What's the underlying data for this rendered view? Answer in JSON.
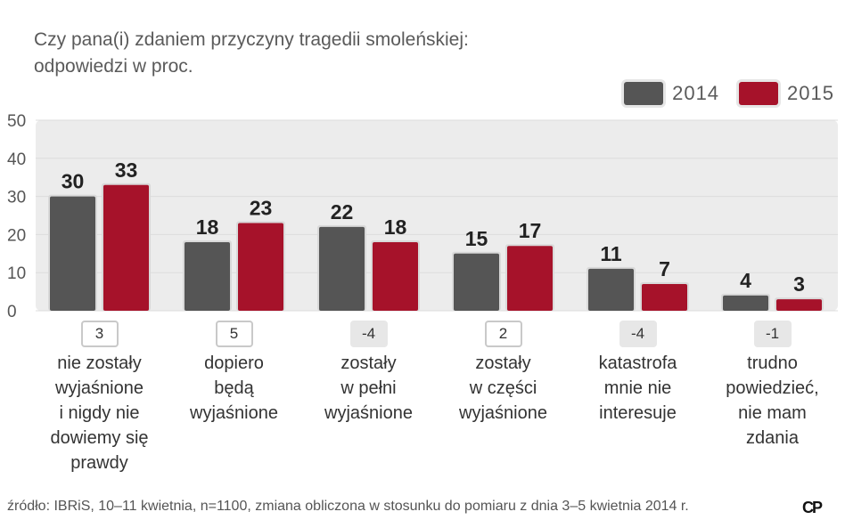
{
  "title": "Czy pana(i) zdaniem przyczyny tragedii smoleńskiej:\nodpowiedzi w proc.",
  "source": "źródło: IBRiS, 10–11 kwietnia, n=1100, zmiana obliczona w stosunku do pomiaru z dnia 3–5 kwietnia 2014 r.",
  "logo": "CP",
  "colors": {
    "2014": "#555555",
    "2015": "#a6122a",
    "plot_bg": "#ececec",
    "gridline": "#dcdcdc"
  },
  "chart_data": {
    "type": "bar",
    "title": "Czy pana(i) zdaniem przyczyny tragedii smoleńskiej: odpowiedzi w proc.",
    "xlabel": "",
    "ylabel": "",
    "ylim": [
      0,
      50
    ],
    "yticks": [
      0,
      10,
      20,
      30,
      40,
      50
    ],
    "grid": true,
    "legend_position": "top-right",
    "categories": [
      "nie zostały\nwyjaśnione\ni nigdy nie\ndowiemy się\nprawdy",
      "dopiero\nbędą\nwyjaśnione",
      "zostały\nw pełni\nwyjaśnione",
      "zostały\nw części\nwyjaśnione",
      "katastrofa\nmnie nie\ninteresuje",
      "trudno\npowiedzieć,\nnie mam\nzdania"
    ],
    "series": [
      {
        "name": "2014",
        "values": [
          30,
          18,
          22,
          15,
          11,
          4
        ]
      },
      {
        "name": "2015",
        "values": [
          33,
          23,
          18,
          17,
          7,
          3
        ]
      }
    ],
    "changes": [
      "3",
      "5",
      "-4",
      "2",
      "-4",
      "-1"
    ]
  }
}
